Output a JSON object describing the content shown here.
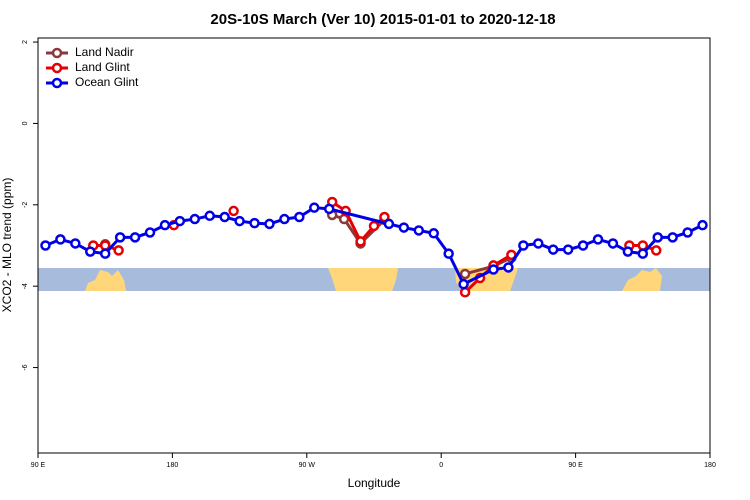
{
  "chart_data": {
    "type": "line",
    "title": "20S-10S March (Ver 10)   2015-01-01 to 2020-12-18",
    "x_label": "Longitude",
    "y_label": "XCO2 - MLO trend (ppm)",
    "xlim": [
      90,
      540
    ],
    "xticks": [
      {
        "value": 90,
        "label": "90 E"
      },
      180,
      {
        "value": 270,
        "label": "90 W"
      },
      {
        "value": 360,
        "label": "0"
      },
      {
        "value": 450,
        "label": "90 E"
      },
      {
        "value": 540,
        "label": "180"
      }
    ],
    "ylim": [
      -8.1,
      2.1
    ],
    "yticks": [
      -6,
      -4,
      -2,
      0,
      2
    ],
    "legend": "top-left",
    "series": [
      {
        "name": "Land Nadir",
        "color": "#8b3a3a",
        "x": [
          135,
          null,
          287,
          295,
          306,
          322,
          null,
          376,
          395,
          407
        ],
        "values": [
          -2.97,
          null,
          -2.25,
          -2.35,
          -2.95,
          -2.37,
          null,
          -3.7,
          -3.51,
          -3.3
        ]
      },
      {
        "name": "Land Glint",
        "color": "#e60000",
        "x": [
          127,
          135,
          144,
          null,
          181,
          null,
          221,
          null,
          287,
          296,
          306,
          315,
          322,
          null,
          376,
          386,
          395,
          407,
          null,
          486,
          495,
          504
        ],
        "values": [
          -3.0,
          -3.0,
          -3.12,
          null,
          -2.5,
          null,
          -2.15,
          null,
          -1.93,
          -2.15,
          -2.9,
          -2.52,
          -2.3,
          null,
          -4.15,
          -3.8,
          -3.49,
          -3.23,
          null,
          -3.0,
          -3.0,
          -3.12
        ]
      },
      {
        "name": "Ocean Glint",
        "color": "#0000e6",
        "x": [
          95,
          105,
          115,
          125,
          135,
          145,
          155,
          165,
          175,
          185,
          195,
          205,
          215,
          225,
          235,
          245,
          255,
          265,
          275,
          285,
          325,
          335,
          345,
          355,
          365,
          375,
          395,
          405,
          415,
          425,
          435,
          445,
          455,
          465,
          475,
          485,
          495,
          505,
          515,
          525,
          535
        ],
        "values": [
          -3.0,
          -2.85,
          -2.95,
          -3.15,
          -3.2,
          -2.8,
          -2.8,
          -2.68,
          -2.5,
          -2.4,
          -2.35,
          -2.27,
          -2.3,
          -2.4,
          -2.45,
          -2.47,
          -2.35,
          -2.3,
          -2.07,
          -2.1,
          -2.47,
          -2.56,
          -2.63,
          -2.7,
          -3.2,
          -3.95,
          -3.59,
          -3.54,
          -3.0,
          -2.95,
          -3.1,
          -3.1,
          -3.0,
          -2.85,
          -2.95,
          -3.15,
          -3.2,
          -2.8,
          -2.8,
          -2.68,
          -2.5
        ]
      }
    ]
  }
}
